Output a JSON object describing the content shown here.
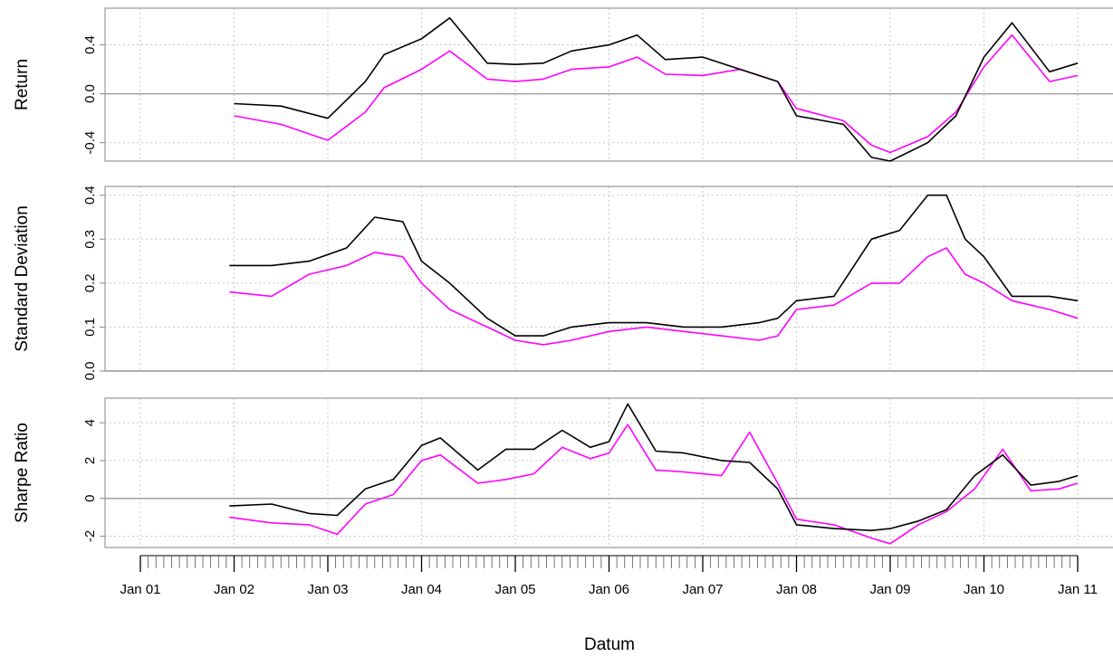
{
  "chart_data": {
    "type": "line",
    "xlabel": "Datum",
    "x_ticks": [
      "Jan 01",
      "Jan 02",
      "Jan 03",
      "Jan 04",
      "Jan 05",
      "Jan 06",
      "Jan 07",
      "Jan 08",
      "Jan 09",
      "Jan 10",
      "Jan 11"
    ],
    "x_range": [
      "Jan 01",
      "Jan 11"
    ],
    "grid": true,
    "series_colors": [
      "#000000",
      "#ff00ff"
    ],
    "panels": [
      {
        "ylabel": "Return",
        "ylim": [
          -0.55,
          0.7
        ],
        "yticks": [
          -0.4,
          0.0,
          0.4
        ],
        "ytick_labels": [
          "-0.4",
          "0.0",
          "0.4"
        ],
        "zero_line": true,
        "series": [
          {
            "x": [
              2.0,
              2.5,
              3.0,
              3.4,
              3.6,
              4.0,
              4.3,
              4.7,
              5.0,
              5.3,
              5.6,
              6.0,
              6.3,
              6.6,
              7.0,
              7.4,
              7.8,
              8.0,
              8.5,
              8.8,
              9.0,
              9.4,
              9.7,
              10.0,
              10.3,
              10.7,
              11.0
            ],
            "values": [
              -0.08,
              -0.1,
              -0.2,
              0.1,
              0.32,
              0.45,
              0.62,
              0.25,
              0.24,
              0.25,
              0.35,
              0.4,
              0.48,
              0.28,
              0.3,
              0.2,
              0.1,
              -0.18,
              -0.25,
              -0.52,
              -0.55,
              -0.4,
              -0.18,
              0.3,
              0.58,
              0.18,
              0.25
            ]
          },
          {
            "x": [
              2.0,
              2.5,
              3.0,
              3.4,
              3.6,
              4.0,
              4.3,
              4.7,
              5.0,
              5.3,
              5.6,
              6.0,
              6.3,
              6.6,
              7.0,
              7.4,
              7.8,
              8.0,
              8.5,
              8.8,
              9.0,
              9.4,
              9.7,
              10.0,
              10.3,
              10.7,
              11.0
            ],
            "values": [
              -0.18,
              -0.25,
              -0.38,
              -0.15,
              0.05,
              0.2,
              0.35,
              0.12,
              0.1,
              0.12,
              0.2,
              0.22,
              0.3,
              0.16,
              0.15,
              0.2,
              0.1,
              -0.12,
              -0.22,
              -0.42,
              -0.48,
              -0.35,
              -0.15,
              0.22,
              0.48,
              0.1,
              0.15
            ]
          }
        ]
      },
      {
        "ylabel": "Standard Deviation",
        "ylim": [
          0.0,
          0.42
        ],
        "yticks": [
          0.0,
          0.1,
          0.2,
          0.3,
          0.4
        ],
        "ytick_labels": [
          "0.0",
          "0.1",
          "0.2",
          "0.3",
          "0.4"
        ],
        "zero_line": true,
        "series": [
          {
            "x": [
              1.95,
              2.4,
              2.8,
              3.2,
              3.5,
              3.8,
              4.0,
              4.3,
              4.7,
              5.0,
              5.3,
              5.6,
              6.0,
              6.4,
              6.8,
              7.2,
              7.6,
              7.8,
              8.0,
              8.4,
              8.8,
              9.1,
              9.4,
              9.6,
              9.8,
              10.0,
              10.3,
              10.7,
              11.0
            ],
            "values": [
              0.24,
              0.24,
              0.25,
              0.28,
              0.35,
              0.34,
              0.25,
              0.2,
              0.12,
              0.08,
              0.08,
              0.1,
              0.11,
              0.11,
              0.1,
              0.1,
              0.11,
              0.12,
              0.16,
              0.17,
              0.3,
              0.32,
              0.4,
              0.4,
              0.3,
              0.26,
              0.17,
              0.17,
              0.16
            ]
          },
          {
            "x": [
              1.95,
              2.4,
              2.8,
              3.2,
              3.5,
              3.8,
              4.0,
              4.3,
              4.7,
              5.0,
              5.3,
              5.6,
              6.0,
              6.4,
              6.8,
              7.2,
              7.6,
              7.8,
              8.0,
              8.4,
              8.8,
              9.1,
              9.4,
              9.6,
              9.8,
              10.0,
              10.3,
              10.7,
              11.0
            ],
            "values": [
              0.18,
              0.17,
              0.22,
              0.24,
              0.27,
              0.26,
              0.2,
              0.14,
              0.1,
              0.07,
              0.06,
              0.07,
              0.09,
              0.1,
              0.09,
              0.08,
              0.07,
              0.08,
              0.14,
              0.15,
              0.2,
              0.2,
              0.26,
              0.28,
              0.22,
              0.2,
              0.16,
              0.14,
              0.12
            ]
          }
        ]
      },
      {
        "ylabel": "Sharpe Ratio",
        "ylim": [
          -2.6,
          5.3
        ],
        "yticks": [
          -2,
          0,
          2,
          4
        ],
        "ytick_labels": [
          "-2",
          "0",
          "2",
          "4"
        ],
        "zero_line": true,
        "series": [
          {
            "x": [
              1.95,
              2.4,
              2.8,
              3.1,
              3.4,
              3.7,
              4.0,
              4.2,
              4.6,
              4.9,
              5.2,
              5.5,
              5.8,
              6.0,
              6.2,
              6.5,
              6.8,
              7.2,
              7.5,
              7.8,
              8.0,
              8.4,
              8.8,
              9.0,
              9.3,
              9.6,
              9.9,
              10.2,
              10.5,
              10.8,
              11.0
            ],
            "values": [
              -0.4,
              -0.3,
              -0.8,
              -0.9,
              0.5,
              1.0,
              2.8,
              3.2,
              1.5,
              2.6,
              2.6,
              3.6,
              2.7,
              3.0,
              5.0,
              2.5,
              2.4,
              2.0,
              1.9,
              0.5,
              -1.4,
              -1.6,
              -1.7,
              -1.6,
              -1.2,
              -0.6,
              1.2,
              2.3,
              0.7,
              0.9,
              1.2
            ]
          },
          {
            "x": [
              1.95,
              2.4,
              2.8,
              3.1,
              3.4,
              3.7,
              4.0,
              4.2,
              4.6,
              4.9,
              5.2,
              5.5,
              5.8,
              6.0,
              6.2,
              6.5,
              6.8,
              7.2,
              7.5,
              7.8,
              8.0,
              8.4,
              8.8,
              9.0,
              9.3,
              9.6,
              9.9,
              10.2,
              10.5,
              10.8,
              11.0
            ],
            "values": [
              -1.0,
              -1.3,
              -1.4,
              -1.9,
              -0.3,
              0.2,
              2.0,
              2.3,
              0.8,
              1.0,
              1.3,
              2.7,
              2.1,
              2.4,
              3.9,
              1.5,
              1.4,
              1.2,
              3.5,
              0.8,
              -1.1,
              -1.4,
              -2.1,
              -2.4,
              -1.4,
              -0.7,
              0.5,
              2.6,
              0.4,
              0.5,
              0.8
            ]
          }
        ]
      }
    ]
  }
}
